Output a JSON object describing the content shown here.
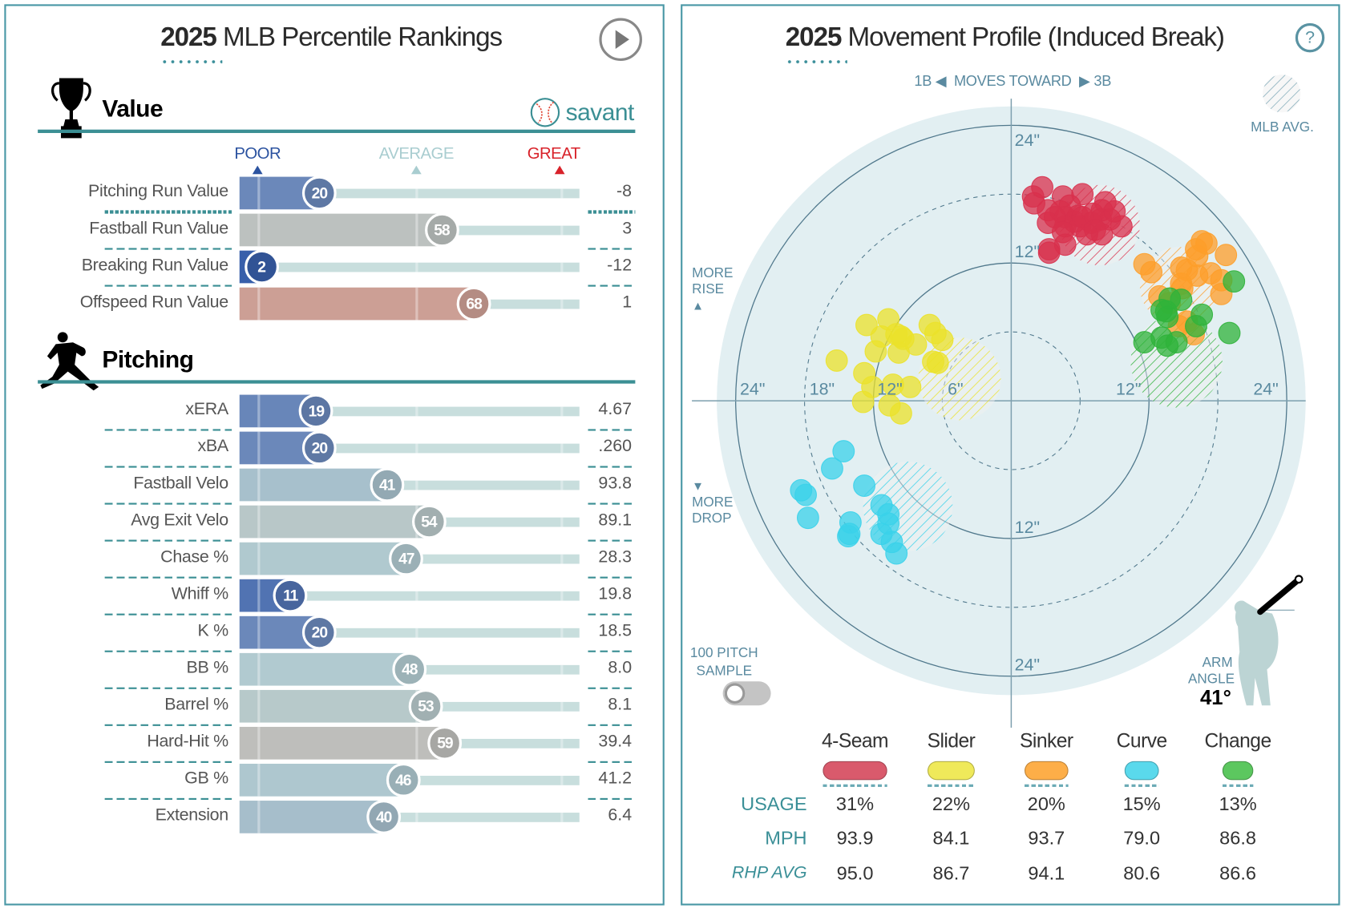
{
  "left_panel": {
    "title_year": "2025",
    "title_rest": " MLB Percentile Rankings",
    "play_icon": "play-icon",
    "value_section": {
      "title": "Value",
      "icon": "trophy-icon"
    },
    "logo_text": "savant",
    "pitching_section": {
      "title": "Pitching",
      "icon": "pitcher-icon"
    },
    "scale_labels": {
      "poor": "POOR",
      "average": "AVERAGE",
      "great": "GREAT"
    },
    "scale_colors": {
      "poor": "#2c53a0",
      "average": "#a9cdd0",
      "great": "#d8222a"
    }
  },
  "percentile_color_stops": [
    {
      "pct": 0,
      "color": "#325aa8"
    },
    {
      "pct": 20,
      "color": "#6b88ba"
    },
    {
      "pct": 40,
      "color": "#a6becb"
    },
    {
      "pct": 50,
      "color": "#b4cdd1"
    },
    {
      "pct": 58,
      "color": "#bcc1bf"
    },
    {
      "pct": 68,
      "color": "#cc9f95"
    },
    {
      "pct": 100,
      "color": "#d8222a"
    }
  ],
  "chart_data": [
    {
      "type": "bar",
      "title": "2025 MLB Percentile Rankings",
      "xlim": [
        0,
        100
      ],
      "groups": [
        {
          "name": "Value",
          "rows": [
            {
              "label": "Pitching Run Value",
              "percentile": 20,
              "value": "-8"
            },
            {
              "label": "Fastball Run Value",
              "percentile": 58,
              "value": "3"
            },
            {
              "label": "Breaking Run Value",
              "percentile": 2,
              "value": "-12"
            },
            {
              "label": "Offspeed Run Value",
              "percentile": 68,
              "value": "1"
            }
          ]
        },
        {
          "name": "Pitching",
          "rows": [
            {
              "label": "xERA",
              "percentile": 19,
              "value": "4.67"
            },
            {
              "label": "xBA",
              "percentile": 20,
              "value": ".260"
            },
            {
              "label": "Fastball Velo",
              "percentile": 41,
              "value": "93.8"
            },
            {
              "label": "Avg Exit Velo",
              "percentile": 54,
              "value": "89.1"
            },
            {
              "label": "Chase %",
              "percentile": 47,
              "value": "28.3"
            },
            {
              "label": "Whiff %",
              "percentile": 11,
              "value": "19.8"
            },
            {
              "label": "K %",
              "percentile": 20,
              "value": "18.5"
            },
            {
              "label": "BB %",
              "percentile": 48,
              "value": "8.0"
            },
            {
              "label": "Barrel %",
              "percentile": 53,
              "value": "8.1"
            },
            {
              "label": "Hard-Hit %",
              "percentile": 59,
              "value": "39.4"
            },
            {
              "label": "GB %",
              "percentile": 46,
              "value": "41.2"
            },
            {
              "label": "Extension",
              "percentile": 40,
              "value": "6.4"
            }
          ]
        }
      ]
    },
    {
      "type": "scatter",
      "title": "2025 Movement Profile (Induced Break)",
      "coordinate_system": "polar-rings",
      "ring_labels_in": [
        6,
        12,
        18,
        24
      ],
      "xlim": [
        -25.6,
        25.6
      ],
      "ylim": [
        -25.6,
        25.6
      ],
      "series": [
        {
          "name": "4-Seam",
          "color": "#d8304c",
          "mlb_avg": {
            "x": 7.7,
            "y": 15.3,
            "r": 3.5
          },
          "points": [
            [
              2.7,
              18.6
            ],
            [
              1.9,
              17.8
            ],
            [
              2.0,
              17.2
            ],
            [
              4.5,
              17.8
            ],
            [
              6.2,
              18.0
            ],
            [
              8.2,
              17.3
            ],
            [
              3.2,
              16.6
            ],
            [
              4.3,
              16.5
            ],
            [
              4.7,
              16.0
            ],
            [
              5.8,
              16.1
            ],
            [
              7.1,
              16.3
            ],
            [
              7.9,
              16.6
            ],
            [
              8.6,
              15.8
            ],
            [
              9.6,
              15.2
            ],
            [
              3.2,
              15.5
            ],
            [
              4.7,
              15.2
            ],
            [
              6.0,
              15.2
            ],
            [
              7.0,
              15.5
            ],
            [
              7.9,
              14.5
            ],
            [
              6.6,
              14.5
            ],
            [
              4.7,
              13.6
            ],
            [
              3.3,
              13.2
            ],
            [
              3.3,
              12.9
            ],
            [
              5.5,
              15.6
            ],
            [
              7.8,
              15.8
            ],
            [
              5.1,
              17.0
            ],
            [
              3.8,
              16.0
            ],
            [
              9.0,
              16.5
            ],
            [
              6.2,
              16.0
            ],
            [
              4.5,
              14.7
            ],
            [
              7.3,
              14.9
            ]
          ]
        },
        {
          "name": "Slider",
          "color": "#ebe22a",
          "mlb_avg": {
            "x": -4.5,
            "y": 1.9,
            "r": 3.6
          },
          "points": [
            [
              -12.6,
              6.6
            ],
            [
              -10.7,
              7.1
            ],
            [
              -11.3,
              5.6
            ],
            [
              -9.6,
              5.6
            ],
            [
              -9.4,
              5.4
            ],
            [
              -8.3,
              4.9
            ],
            [
              -11.8,
              4.3
            ],
            [
              -9.8,
              4.2
            ],
            [
              -7.1,
              6.6
            ],
            [
              -6.6,
              5.9
            ],
            [
              -6.0,
              5.3
            ],
            [
              -15.2,
              3.5
            ],
            [
              -6.8,
              3.4
            ],
            [
              -6.4,
              3.3
            ],
            [
              -12.8,
              2.4
            ],
            [
              -12.1,
              1.2
            ],
            [
              -10.3,
              1.4
            ],
            [
              -8.8,
              1.2
            ],
            [
              -12.9,
              -0.1
            ],
            [
              -10.6,
              -0.4
            ],
            [
              -9.6,
              -1.1
            ],
            [
              -10.0,
              5.8
            ]
          ]
        },
        {
          "name": "Sinker",
          "color": "#fd9e2a",
          "mlb_avg": {
            "x": 14.6,
            "y": 10.0,
            "r": 3.4
          },
          "points": [
            [
              16.6,
              13.9
            ],
            [
              16.1,
              13.2
            ],
            [
              16.2,
              12.6
            ],
            [
              18.7,
              12.7
            ],
            [
              11.6,
              11.9
            ],
            [
              12.2,
              11.2
            ],
            [
              14.8,
              11.6
            ],
            [
              15.3,
              11.4
            ],
            [
              16.2,
              10.9
            ],
            [
              18.3,
              10.5
            ],
            [
              14.8,
              10.2
            ],
            [
              12.9,
              9.1
            ],
            [
              18.3,
              9.3
            ],
            [
              14.6,
              6.5
            ],
            [
              15.9,
              5.8
            ],
            [
              13.8,
              8.5
            ],
            [
              17.4,
              11.1
            ],
            [
              14.9,
              9.8
            ],
            [
              17.0,
              13.7
            ],
            [
              15.3,
              6.9
            ]
          ]
        },
        {
          "name": "Curve",
          "color": "#3ad2ea",
          "mlb_avg": {
            "x": -9.0,
            "y": -9.2,
            "r": 3.9
          },
          "points": [
            [
              -14.6,
              -4.4
            ],
            [
              -15.6,
              -5.9
            ],
            [
              -18.3,
              -7.8
            ],
            [
              -17.9,
              -8.2
            ],
            [
              -12.8,
              -7.4
            ],
            [
              -17.7,
              -10.2
            ],
            [
              -11.3,
              -9.1
            ],
            [
              -10.7,
              -9.9
            ],
            [
              -10.7,
              -10.7
            ],
            [
              -14.0,
              -10.6
            ],
            [
              -14.1,
              -11.6
            ],
            [
              -14.2,
              -11.8
            ],
            [
              -11.3,
              -11.6
            ],
            [
              -10.4,
              -12.3
            ],
            [
              -10.0,
              -13.3
            ]
          ]
        },
        {
          "name": "Change",
          "color": "#2fb33a",
          "mlb_avg": {
            "x": 14.4,
            "y": 3.4,
            "r": 4.0
          },
          "points": [
            [
              19.4,
              10.4
            ],
            [
              13.8,
              8.9
            ],
            [
              14.8,
              8.8
            ],
            [
              13.5,
              7.8
            ],
            [
              13.6,
              7.3
            ],
            [
              16.6,
              7.5
            ],
            [
              16.1,
              6.5
            ],
            [
              19.0,
              5.9
            ],
            [
              11.6,
              5.1
            ],
            [
              13.1,
              5.5
            ],
            [
              13.6,
              4.8
            ],
            [
              14.4,
              5.1
            ],
            [
              13.1,
              7.9
            ]
          ]
        }
      ]
    }
  ],
  "right_panel": {
    "title_year": "2025",
    "title_rest": " Movement Profile (Induced Break)",
    "help_label": "?",
    "direction": {
      "left": "1B",
      "middle": "MOVES TOWARD",
      "right": "3B"
    },
    "mlb_avg_label": "MLB AVG.",
    "more_rise": [
      "MORE",
      "RISE"
    ],
    "more_drop": [
      "MORE",
      "DROP"
    ],
    "axis_labels": {
      "top24": "24\"",
      "top12": "12\"",
      "left24": "24\"",
      "left18": "18\"",
      "left12": "12\"",
      "left6": "6\"",
      "right12": "12\"",
      "right24": "24\"",
      "bottom12": "12\"",
      "bottom24": "24\""
    },
    "sample_toggle": {
      "label_line1": "100 PITCH",
      "label_line2": "SAMPLE",
      "on": false
    },
    "arm_angle": {
      "label_line1": "ARM",
      "label_line2": "ANGLE",
      "value": "41°"
    },
    "legend": {
      "row_labels": {
        "usage": "USAGE",
        "mph": "MPH",
        "rhp_avg": "RHP AVG"
      },
      "pitches": [
        {
          "name": "4-Seam",
          "color": "#d95a6c",
          "usage": "31%",
          "usage_pct": 31,
          "mph": "93.9",
          "rhp_avg": "95.0"
        },
        {
          "name": "Slider",
          "color": "#efe95a",
          "usage": "22%",
          "usage_pct": 22,
          "mph": "84.1",
          "rhp_avg": "86.7"
        },
        {
          "name": "Sinker",
          "color": "#fdae48",
          "usage": "20%",
          "usage_pct": 20,
          "mph": "93.7",
          "rhp_avg": "94.1"
        },
        {
          "name": "Curve",
          "color": "#5ad9ec",
          "usage": "15%",
          "usage_pct": 15,
          "mph": "79.0",
          "rhp_avg": "80.6"
        },
        {
          "name": "Change",
          "color": "#5cc75f",
          "usage": "13%",
          "usage_pct": 13,
          "mph": "86.8",
          "rhp_avg": "86.6"
        }
      ]
    }
  }
}
